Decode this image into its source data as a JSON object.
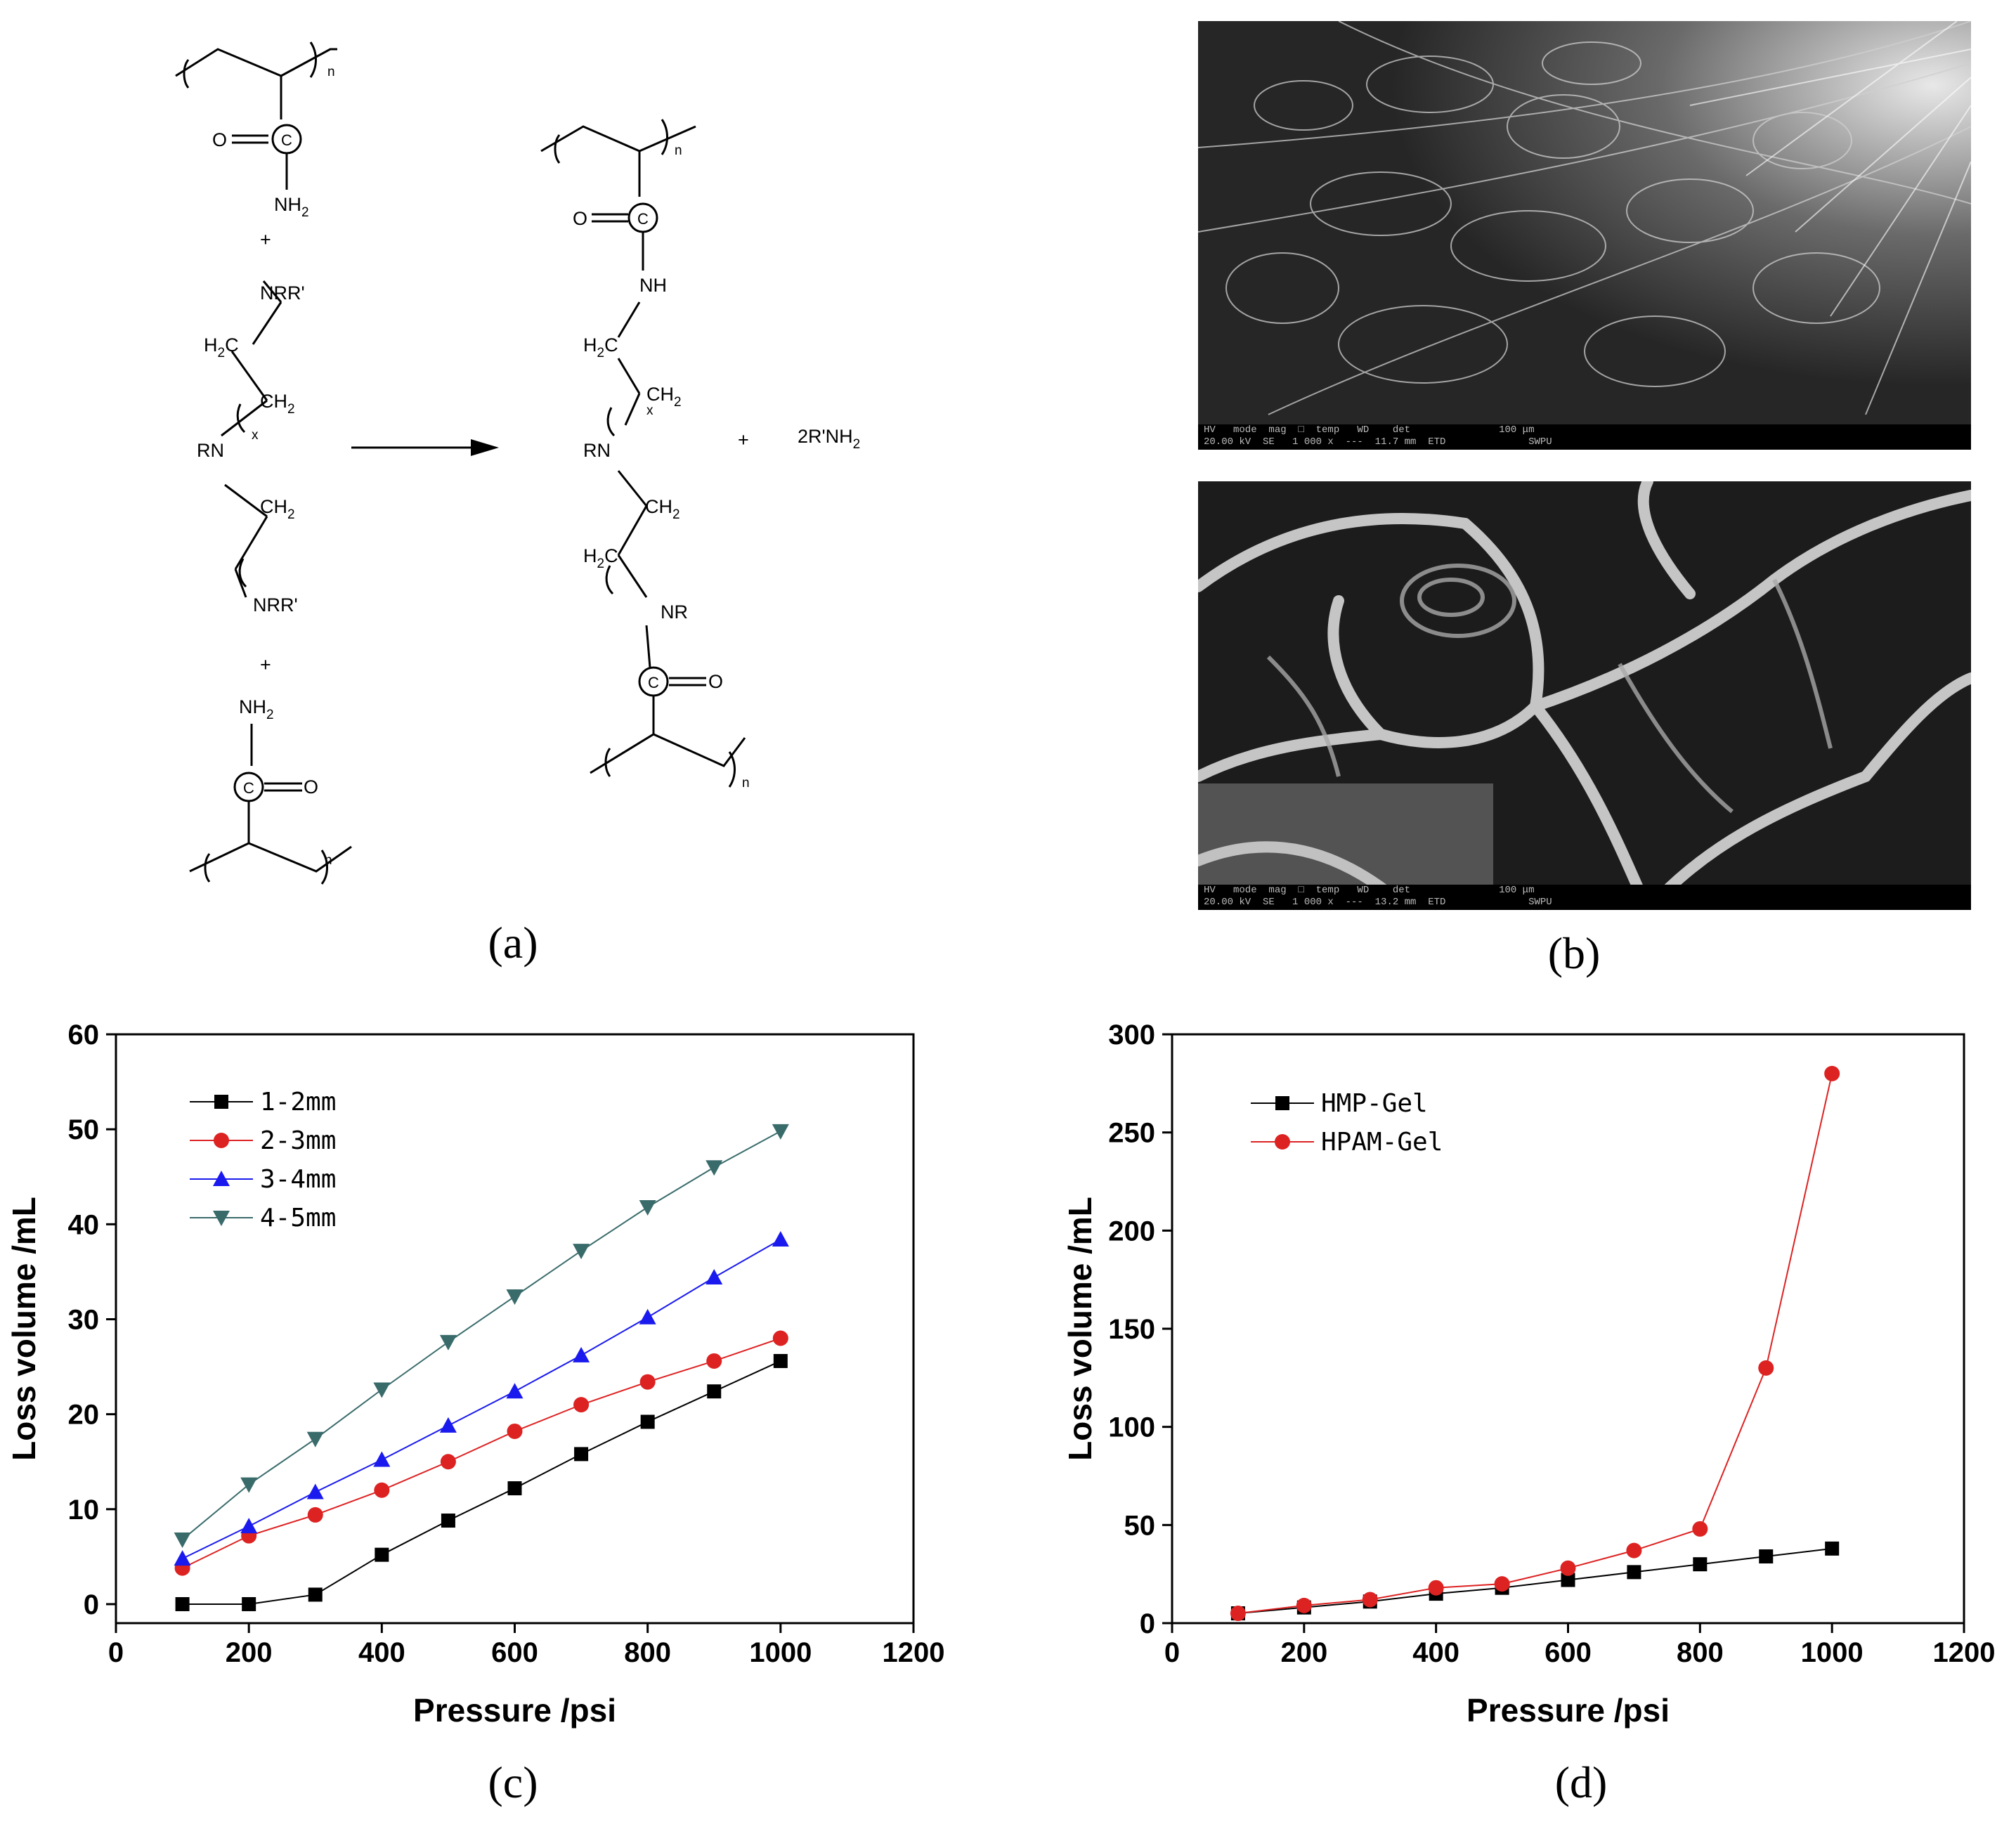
{
  "panel_labels": {
    "a": "(a)",
    "b": "(b)",
    "c": "(c)",
    "d": "(d)"
  },
  "scheme": {
    "subscript_n": "n",
    "subscript_x": "x",
    "plus": "+",
    "reactant_amide": "O=C, NH2",
    "nrr": "NRR'",
    "h2c": "H2C",
    "ch2": "CH2",
    "rn": "RN",
    "nh": "NH",
    "nr": "NR",
    "byproduct": "2R'NH2"
  },
  "sem": {
    "top_info": [
      "HV   mode  mag  □  temp   WD    det               100 μm",
      "20.00 kV  SE   1 000 x  ---  11.7 mm  ETD              SWPU"
    ],
    "bottom_info": [
      "HV   mode  mag  □  temp   WD    det               100 μm",
      "20.00 kV  SE   1 000 x  ---  13.2 mm  ETD              SWPU"
    ]
  },
  "chart_data": [
    {
      "type": "line",
      "panel": "(c)",
      "xlabel": "Pressure  /psi",
      "ylabel": "Loss volume /mL",
      "xlim": [
        0,
        1200
      ],
      "ylim": [
        -2,
        60
      ],
      "xticks": [
        0,
        200,
        400,
        600,
        800,
        1000,
        1200
      ],
      "yticks": [
        0,
        10,
        20,
        30,
        40,
        50,
        60
      ],
      "legend_position": "top-left",
      "grid": false,
      "x": [
        100,
        200,
        300,
        400,
        500,
        600,
        700,
        800,
        900,
        1000
      ],
      "series": [
        {
          "name": "1-2mm",
          "color": "#000000",
          "marker": "square",
          "values": [
            0,
            0,
            1,
            5.2,
            8.8,
            12.2,
            15.8,
            19.2,
            22.4,
            25.6
          ]
        },
        {
          "name": "2-3mm",
          "color": "#dd2222",
          "marker": "circle",
          "values": [
            3.8,
            7.2,
            9.4,
            12.0,
            15.0,
            18.2,
            21.0,
            23.4,
            25.6,
            28.0
          ]
        },
        {
          "name": "3-4mm",
          "color": "#1a1aee",
          "marker": "triangle-up",
          "values": [
            4.8,
            8.2,
            11.8,
            15.2,
            18.8,
            22.4,
            26.2,
            30.2,
            34.4,
            38.4
          ]
        },
        {
          "name": "4-5mm",
          "color": "#3a6b6b",
          "marker": "triangle-down",
          "values": [
            6.8,
            12.6,
            17.4,
            22.6,
            27.6,
            32.4,
            37.2,
            41.8,
            46.0,
            49.8
          ]
        }
      ]
    },
    {
      "type": "line",
      "panel": "(d)",
      "xlabel": "Pressure  /psi",
      "ylabel": "Loss volume /mL",
      "xlim": [
        0,
        1200
      ],
      "ylim": [
        0,
        300
      ],
      "xticks": [
        0,
        200,
        400,
        600,
        800,
        1000,
        1200
      ],
      "yticks": [
        0,
        50,
        100,
        150,
        200,
        250,
        300
      ],
      "legend_position": "top-left",
      "grid": false,
      "x": [
        100,
        200,
        300,
        400,
        500,
        600,
        700,
        800,
        900,
        1000
      ],
      "series": [
        {
          "name": "HMP-Gel",
          "color": "#000000",
          "marker": "square",
          "values": [
            5,
            8,
            11,
            15,
            18,
            22,
            26,
            30,
            34,
            38
          ]
        },
        {
          "name": "HPAM-Gel",
          "color": "#dd2222",
          "marker": "circle",
          "values": [
            5,
            9,
            12,
            18,
            20,
            28,
            37,
            48,
            130,
            280
          ]
        }
      ]
    }
  ]
}
